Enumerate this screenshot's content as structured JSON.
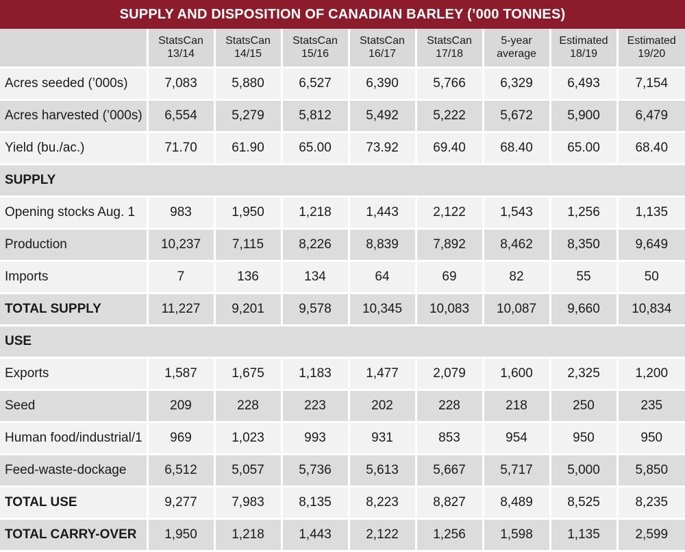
{
  "title": "SUPPLY AND DISPOSITION OF CANADIAN BARLEY (’000 TONNES)",
  "columns": [
    {
      "line1": "StatsCan",
      "line2": "13/14"
    },
    {
      "line1": "StatsCan",
      "line2": "14/15"
    },
    {
      "line1": "StatsCan",
      "line2": "15/16"
    },
    {
      "line1": "StatsCan",
      "line2": "16/17"
    },
    {
      "line1": "StatsCan",
      "line2": "17/18"
    },
    {
      "line1": "5-year",
      "line2": "average"
    },
    {
      "line1": "Estimated",
      "line2": "18/19"
    },
    {
      "line1": "Estimated",
      "line2": "19/20"
    }
  ],
  "rows": [
    {
      "type": "data",
      "label": "Acres seeded (’000s)",
      "values": [
        "7,083",
        "5,880",
        "6,527",
        "6,390",
        "5,766",
        "6,329",
        "6,493",
        "7,154"
      ]
    },
    {
      "type": "data",
      "label": "Acres harvested (’000s)",
      "values": [
        "6,554",
        "5,279",
        "5,812",
        "5,492",
        "5,222",
        "5,672",
        "5,900",
        "6,479"
      ]
    },
    {
      "type": "data",
      "label": "Yield (bu./ac.)",
      "values": [
        "71.70",
        "61.90",
        "65.00",
        "73.92",
        "69.40",
        "68.40",
        "65.00",
        "68.40"
      ]
    },
    {
      "type": "section",
      "label": "SUPPLY"
    },
    {
      "type": "data",
      "label": "Opening stocks Aug. 1",
      "values": [
        "983",
        "1,950",
        "1,218",
        "1,443",
        "2,122",
        "1,543",
        "1,256",
        "1,135"
      ]
    },
    {
      "type": "data",
      "label": "Production",
      "values": [
        "10,237",
        "7,115",
        "8,226",
        "8,839",
        "7,892",
        "8,462",
        "8,350",
        "9,649"
      ]
    },
    {
      "type": "data",
      "label": "Imports",
      "values": [
        "7",
        "136",
        "134",
        "64",
        "69",
        "82",
        "55",
        "50"
      ]
    },
    {
      "type": "total",
      "label": "TOTAL SUPPLY",
      "values": [
        "11,227",
        "9,201",
        "9,578",
        "10,345",
        "10,083",
        "10,087",
        "9,660",
        "10,834"
      ]
    },
    {
      "type": "section",
      "label": "USE"
    },
    {
      "type": "data",
      "label": "Exports",
      "values": [
        "1,587",
        "1,675",
        "1,183",
        "1,477",
        "2,079",
        "1,600",
        "2,325",
        "1,200"
      ]
    },
    {
      "type": "data",
      "label": "Seed",
      "values": [
        "209",
        "228",
        "223",
        "202",
        "228",
        "218",
        "250",
        "235"
      ]
    },
    {
      "type": "data",
      "label": "Human food/industrial/1",
      "values": [
        "969",
        "1,023",
        "993",
        "931",
        "853",
        "954",
        "950",
        "950"
      ]
    },
    {
      "type": "data",
      "label": "Feed-waste-dockage",
      "values": [
        "6,512",
        "5,057",
        "5,736",
        "5,613",
        "5,667",
        "5,717",
        "5,000",
        "5,850"
      ]
    },
    {
      "type": "total",
      "label": "TOTAL USE",
      "values": [
        "9,277",
        "7,983",
        "8,135",
        "8,223",
        "8,827",
        "8,489",
        "8,525",
        "8,235"
      ]
    },
    {
      "type": "total",
      "label": "TOTAL CARRY-OVER",
      "values": [
        "1,950",
        "1,218",
        "1,443",
        "2,122",
        "1,256",
        "1,598",
        "1,135",
        "2,599"
      ]
    }
  ],
  "colors": {
    "title_bg": "#8c1c2c",
    "header_bg": "#d9d9d9",
    "row_light": "#f2f2f2",
    "row_dark": "#dcdcdc"
  }
}
